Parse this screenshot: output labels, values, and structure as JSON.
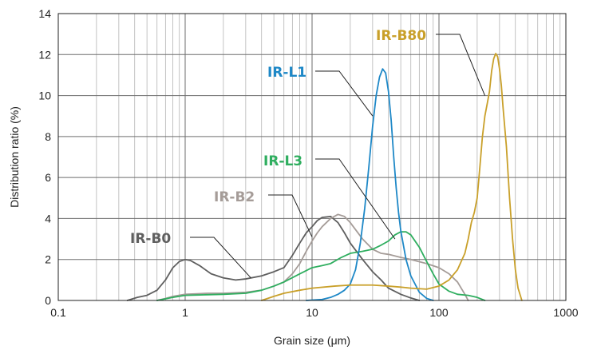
{
  "chart_data": {
    "type": "line",
    "xlabel": "Grain size (μm)",
    "ylabel": "Distribution ratio (%)",
    "xscale": "log",
    "xlim": [
      0.1,
      1000
    ],
    "ylim": [
      0,
      14
    ],
    "x_ticks": [
      "0.1",
      "1",
      "10",
      "100",
      "1000"
    ],
    "y_ticks": [
      "0",
      "2",
      "4",
      "6",
      "8",
      "10",
      "12",
      "14"
    ],
    "grid": {
      "x": "major+minor",
      "y": "major"
    },
    "series": [
      {
        "name": "IR-B0",
        "color": "#5f5f5f",
        "points": [
          [
            0.35,
            0
          ],
          [
            0.42,
            0.15
          ],
          [
            0.5,
            0.25
          ],
          [
            0.6,
            0.5
          ],
          [
            0.7,
            1.0
          ],
          [
            0.8,
            1.6
          ],
          [
            0.9,
            1.9
          ],
          [
            1.0,
            2.0
          ],
          [
            1.1,
            1.95
          ],
          [
            1.3,
            1.7
          ],
          [
            1.6,
            1.3
          ],
          [
            2.0,
            1.1
          ],
          [
            2.5,
            1.0
          ],
          [
            3.0,
            1.05
          ],
          [
            4.0,
            1.2
          ],
          [
            5.0,
            1.4
          ],
          [
            6.0,
            1.6
          ],
          [
            7.0,
            2.2
          ],
          [
            8.0,
            2.8
          ],
          [
            9.0,
            3.3
          ],
          [
            10.0,
            3.6
          ],
          [
            11.0,
            3.9
          ],
          [
            12.0,
            4.05
          ],
          [
            14.0,
            4.1
          ],
          [
            16.0,
            3.8
          ],
          [
            18.0,
            3.3
          ],
          [
            20.0,
            2.8
          ],
          [
            25.0,
            2.0
          ],
          [
            30.0,
            1.4
          ],
          [
            35.0,
            1.0
          ],
          [
            40.0,
            0.6
          ],
          [
            50.0,
            0.3
          ],
          [
            60.0,
            0.12
          ],
          [
            70.0,
            0
          ]
        ]
      },
      {
        "name": "IR-B2",
        "color": "#a59c98",
        "points": [
          [
            0.6,
            0
          ],
          [
            0.7,
            0.1
          ],
          [
            0.8,
            0.2
          ],
          [
            1.0,
            0.3
          ],
          [
            1.5,
            0.35
          ],
          [
            2.0,
            0.35
          ],
          [
            3.0,
            0.4
          ],
          [
            4.0,
            0.5
          ],
          [
            5.0,
            0.7
          ],
          [
            6.0,
            0.9
          ],
          [
            7.0,
            1.3
          ],
          [
            8.0,
            1.8
          ],
          [
            9.0,
            2.4
          ],
          [
            10.0,
            2.9
          ],
          [
            11.0,
            3.3
          ],
          [
            12.0,
            3.6
          ],
          [
            14.0,
            4.0
          ],
          [
            16.0,
            4.2
          ],
          [
            18.0,
            4.1
          ],
          [
            20.0,
            3.8
          ],
          [
            25.0,
            3.0
          ],
          [
            30.0,
            2.5
          ],
          [
            35.0,
            2.3
          ],
          [
            40.0,
            2.25
          ],
          [
            50.0,
            2.1
          ],
          [
            60.0,
            2.0
          ],
          [
            80.0,
            1.8
          ],
          [
            100.0,
            1.6
          ],
          [
            120.0,
            1.3
          ],
          [
            140.0,
            0.9
          ],
          [
            160.0,
            0.3
          ],
          [
            170.0,
            0
          ]
        ]
      },
      {
        "name": "IR-L3",
        "color": "#2fae5f",
        "points": [
          [
            0.6,
            0
          ],
          [
            0.8,
            0.15
          ],
          [
            1.0,
            0.25
          ],
          [
            1.5,
            0.28
          ],
          [
            2.0,
            0.3
          ],
          [
            3.0,
            0.35
          ],
          [
            4.0,
            0.5
          ],
          [
            5.0,
            0.7
          ],
          [
            6.0,
            0.9
          ],
          [
            8.0,
            1.3
          ],
          [
            10.0,
            1.6
          ],
          [
            12.0,
            1.7
          ],
          [
            14.0,
            1.8
          ],
          [
            17.0,
            2.1
          ],
          [
            20.0,
            2.3
          ],
          [
            25.0,
            2.4
          ],
          [
            30.0,
            2.5
          ],
          [
            35.0,
            2.7
          ],
          [
            40.0,
            2.9
          ],
          [
            45.0,
            3.2
          ],
          [
            50.0,
            3.35
          ],
          [
            55.0,
            3.35
          ],
          [
            60.0,
            3.2
          ],
          [
            70.0,
            2.6
          ],
          [
            80.0,
            1.9
          ],
          [
            90.0,
            1.3
          ],
          [
            100.0,
            0.8
          ],
          [
            120.0,
            0.45
          ],
          [
            140.0,
            0.3
          ],
          [
            170.0,
            0.25
          ],
          [
            200.0,
            0.15
          ],
          [
            230.0,
            0
          ]
        ]
      },
      {
        "name": "IR-L1",
        "color": "#1e88c7",
        "points": [
          [
            9.0,
            0
          ],
          [
            10.0,
            0.02
          ],
          [
            12.0,
            0.05
          ],
          [
            14.0,
            0.15
          ],
          [
            16.0,
            0.3
          ],
          [
            18.0,
            0.5
          ],
          [
            20.0,
            0.8
          ],
          [
            22.0,
            1.5
          ],
          [
            24.0,
            2.8
          ],
          [
            26.0,
            4.5
          ],
          [
            28.0,
            6.5
          ],
          [
            30.0,
            8.5
          ],
          [
            32.0,
            10.0
          ],
          [
            34.0,
            10.9
          ],
          [
            36.0,
            11.3
          ],
          [
            38.0,
            11.1
          ],
          [
            40.0,
            10.2
          ],
          [
            42.0,
            8.8
          ],
          [
            44.0,
            7.0
          ],
          [
            46.0,
            5.5
          ],
          [
            48.0,
            4.3
          ],
          [
            50.0,
            3.4
          ],
          [
            55.0,
            2.0
          ],
          [
            60.0,
            1.2
          ],
          [
            70.0,
            0.4
          ],
          [
            80.0,
            0.1
          ],
          [
            90.0,
            0
          ]
        ]
      },
      {
        "name": "IR-B80",
        "color": "#c9a02a",
        "points": [
          [
            4.0,
            0
          ],
          [
            5.0,
            0.2
          ],
          [
            6.0,
            0.35
          ],
          [
            8.0,
            0.5
          ],
          [
            10.0,
            0.6
          ],
          [
            15.0,
            0.7
          ],
          [
            20.0,
            0.75
          ],
          [
            30.0,
            0.75
          ],
          [
            40.0,
            0.7
          ],
          [
            50.0,
            0.65
          ],
          [
            60.0,
            0.6
          ],
          [
            80.0,
            0.55
          ],
          [
            100.0,
            0.7
          ],
          [
            120.0,
            1.0
          ],
          [
            140.0,
            1.5
          ],
          [
            160.0,
            2.3
          ],
          [
            170.0,
            3.0
          ],
          [
            180.0,
            3.8
          ],
          [
            190.0,
            4.3
          ],
          [
            200.0,
            5.0
          ],
          [
            210.0,
            6.5
          ],
          [
            220.0,
            8.0
          ],
          [
            230.0,
            9.0
          ],
          [
            240.0,
            9.6
          ],
          [
            250.0,
            10.2
          ],
          [
            260.0,
            11.2
          ],
          [
            270.0,
            11.8
          ],
          [
            280.0,
            12.05
          ],
          [
            290.0,
            11.9
          ],
          [
            300.0,
            11.3
          ],
          [
            310.0,
            10.5
          ],
          [
            320.0,
            9.4
          ],
          [
            340.0,
            7.5
          ],
          [
            360.0,
            5.0
          ],
          [
            380.0,
            3.0
          ],
          [
            400.0,
            1.5
          ],
          [
            420.0,
            0.6
          ],
          [
            450.0,
            0
          ]
        ]
      }
    ],
    "annotations": [
      {
        "series": "IR-B0",
        "text": "IR-B0",
        "color": "#5f5f5f",
        "target": [
          3.3,
          1.1
        ]
      },
      {
        "series": "IR-B2",
        "text": "IR-B2",
        "color": "#a59c98",
        "target": [
          10.0,
          3.1
        ]
      },
      {
        "series": "IR-L3",
        "text": "IR-L3",
        "color": "#2fae5f",
        "target": [
          45.0,
          3.0
        ]
      },
      {
        "series": "IR-L1",
        "text": "IR-L1",
        "color": "#1e88c7",
        "target": [
          30.0,
          9.0
        ]
      },
      {
        "series": "IR-B80",
        "text": "IR-B80",
        "color": "#c9a02a",
        "target": [
          230.0,
          10.0
        ]
      }
    ]
  }
}
